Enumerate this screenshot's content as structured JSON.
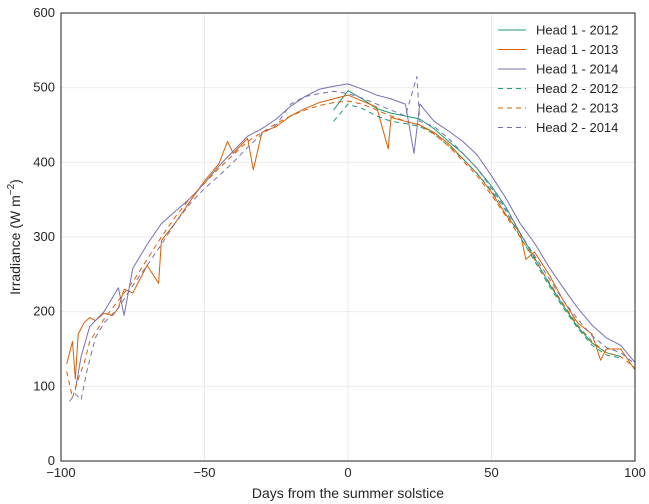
{
  "chart_data": {
    "type": "line",
    "xlabel": "Days from the summer solstice",
    "ylabel": "Irradiance (W m",
    "ylabel_sup": "−2",
    "ylabel_end": ")",
    "xlim": [
      -100,
      100
    ],
    "ylim": [
      0,
      600
    ],
    "xticks": [
      -100,
      -50,
      0,
      50,
      100
    ],
    "xtick_labels": [
      "−100",
      "−50",
      "0",
      "50",
      "100"
    ],
    "yticks": [
      0,
      100,
      200,
      300,
      400,
      500,
      600
    ],
    "ytick_labels": [
      "0",
      "100",
      "200",
      "300",
      "400",
      "500",
      "600"
    ],
    "grid": true,
    "legend_position": "top-right",
    "series": [
      {
        "name": "Head 1 - 2012",
        "color": "#1b9e77",
        "dash": "solid",
        "x": [
          -5,
          0,
          5,
          10,
          15,
          20,
          25,
          30,
          35,
          40,
          45,
          50,
          55,
          60,
          65,
          70,
          75,
          80,
          85,
          90,
          95
        ],
        "y": [
          470,
          496,
          485,
          472,
          466,
          462,
          458,
          445,
          428,
          412,
          392,
          368,
          340,
          305,
          272,
          238,
          208,
          180,
          158,
          145,
          140
        ]
      },
      {
        "name": "Head 1 - 2013",
        "color": "#d95f02",
        "dash": "solid",
        "x": [
          -98,
          -96,
          -95,
          -94,
          -92,
          -90,
          -88,
          -85,
          -82,
          -80,
          -78,
          -75,
          -70,
          -66,
          -65,
          -60,
          -55,
          -50,
          -45,
          -42,
          -40,
          -35,
          -33,
          -30,
          -25,
          -20,
          -15,
          -10,
          -5,
          0,
          5,
          10,
          14,
          15,
          20,
          25,
          30,
          35,
          40,
          45,
          50,
          55,
          60,
          62,
          65,
          70,
          75,
          80,
          85,
          88,
          90,
          95,
          100
        ],
        "y": [
          130,
          160,
          110,
          170,
          185,
          192,
          188,
          198,
          195,
          205,
          230,
          225,
          262,
          238,
          295,
          320,
          348,
          375,
          398,
          428,
          412,
          432,
          390,
          440,
          448,
          462,
          472,
          480,
          485,
          490,
          482,
          474,
          418,
          460,
          455,
          450,
          440,
          425,
          405,
          385,
          360,
          330,
          305,
          270,
          280,
          250,
          215,
          185,
          170,
          135,
          150,
          150,
          122
        ]
      },
      {
        "name": "Head 1 - 2014",
        "color": "#7570b3",
        "dash": "solid",
        "x": [
          -95,
          -93,
          -90,
          -85,
          -80,
          -78,
          -75,
          -70,
          -65,
          -60,
          -55,
          -50,
          -45,
          -40,
          -35,
          -30,
          -25,
          -20,
          -15,
          -10,
          -5,
          0,
          5,
          10,
          15,
          20,
          23,
          25,
          30,
          35,
          40,
          45,
          50,
          55,
          60,
          65,
          70,
          75,
          80,
          85,
          90,
          95,
          100
        ],
        "y": [
          95,
          140,
          180,
          200,
          232,
          195,
          258,
          290,
          318,
          335,
          352,
          372,
          395,
          415,
          435,
          445,
          458,
          475,
          488,
          498,
          502,
          505,
          498,
          490,
          485,
          478,
          412,
          478,
          455,
          442,
          428,
          410,
          382,
          352,
          318,
          292,
          260,
          232,
          205,
          182,
          165,
          155,
          132
        ]
      },
      {
        "name": "Head 2 - 2012",
        "color": "#1b9e77",
        "dash": "dashed",
        "x": [
          -5,
          0,
          5,
          10,
          15,
          20,
          25,
          30,
          35,
          40,
          45,
          50,
          55,
          60,
          65,
          70,
          75,
          80,
          85,
          90,
          95
        ],
        "y": [
          455,
          478,
          472,
          462,
          455,
          452,
          448,
          438,
          422,
          405,
          385,
          362,
          335,
          300,
          268,
          235,
          205,
          178,
          155,
          142,
          138
        ]
      },
      {
        "name": "Head 2 - 2013",
        "color": "#d95f02",
        "dash": "dashed",
        "x": [
          -98,
          -96,
          -94,
          -92,
          -90,
          -85,
          -80,
          -75,
          -70,
          -65,
          -60,
          -55,
          -50,
          -45,
          -40,
          -35,
          -30,
          -25,
          -20,
          -15,
          -10,
          -5,
          0,
          5,
          10,
          15,
          20,
          25,
          30,
          35,
          40,
          45,
          50,
          55,
          60,
          65,
          70,
          75,
          80,
          85,
          90,
          95,
          100
        ],
        "y": [
          120,
          85,
          110,
          130,
          160,
          190,
          215,
          240,
          270,
          300,
          328,
          352,
          372,
          392,
          410,
          428,
          440,
          452,
          462,
          470,
          476,
          480,
          482,
          478,
          470,
          462,
          455,
          450,
          438,
          422,
          402,
          382,
          356,
          328,
          300,
          270,
          240,
          210,
          182,
          160,
          145,
          140,
          125
        ]
      },
      {
        "name": "Head 2 - 2014",
        "color": "#7570b3",
        "dash": "dashed",
        "x": [
          -97,
          -95,
          -93,
          -91,
          -88,
          -85,
          -80,
          -75,
          -70,
          -65,
          -60,
          -55,
          -50,
          -45,
          -40,
          -35,
          -30,
          -25,
          -20,
          -15,
          -10,
          -5,
          0,
          5,
          10,
          15,
          20,
          24,
          25,
          30,
          35,
          40,
          45,
          50,
          55,
          60,
          65,
          70,
          75,
          80,
          85,
          90,
          95,
          100
        ],
        "y": [
          80,
          90,
          82,
          120,
          165,
          185,
          205,
          235,
          262,
          290,
          320,
          345,
          365,
          382,
          400,
          420,
          438,
          450,
          478,
          488,
          492,
          495,
          492,
          486,
          478,
          470,
          462,
          515,
          455,
          448,
          432,
          412,
          392,
          365,
          338,
          305,
          275,
          245,
          215,
          190,
          168,
          152,
          145,
          130
        ]
      }
    ]
  }
}
